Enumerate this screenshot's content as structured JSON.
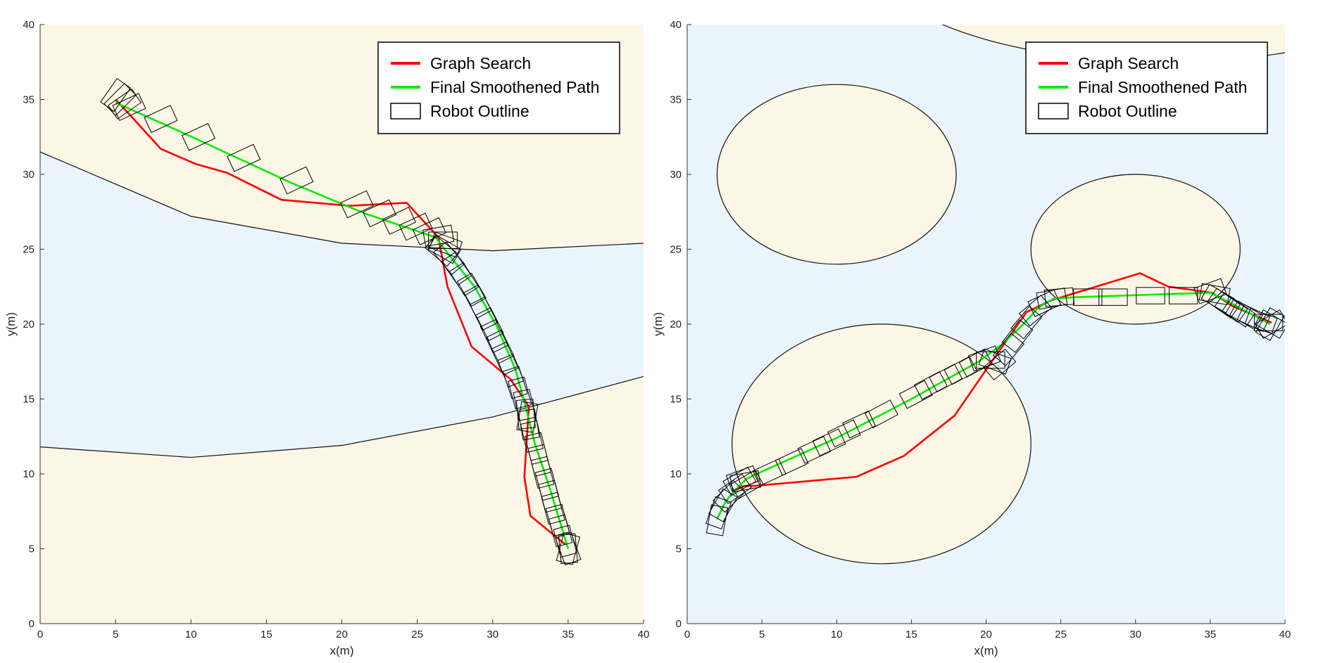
{
  "colors": {
    "background": "#ffffff",
    "sand": "#fcf6e6",
    "water": "#eaf5fb",
    "graph_search": "#ff0000",
    "smoothed": "#00ee00",
    "outline": "#000000"
  },
  "chart_data": [
    {
      "type": "line",
      "xlabel": "x(m)",
      "ylabel": "y(m)",
      "xlim": [
        0,
        40
      ],
      "ylim": [
        0,
        40
      ],
      "xticks": [
        "0",
        "5",
        "10",
        "15",
        "20",
        "25",
        "30",
        "35",
        "40"
      ],
      "yticks": [
        "0",
        "5",
        "10",
        "15",
        "20",
        "25",
        "30",
        "35",
        "40"
      ],
      "grid": false,
      "legend_position": "top-right",
      "legend": [
        "Graph Search",
        "Final Smoothened Path",
        "Robot Outline"
      ],
      "background_region": "sand",
      "regions": [
        {
          "kind": "band",
          "fill": "water",
          "upper_arc": [
            [
              0,
              31.5
            ],
            [
              10,
              27.2
            ],
            [
              20,
              25.4
            ],
            [
              30,
              24.9
            ],
            [
              40,
              25.4
            ]
          ],
          "lower_arc": [
            [
              0,
              11.8
            ],
            [
              10,
              11.1
            ],
            [
              20,
              11.9
            ],
            [
              30,
              13.8
            ],
            [
              40,
              16.5
            ]
          ]
        }
      ],
      "series": [
        {
          "name": "Graph Search",
          "color_key": "graph_search",
          "x": [
            5,
            6.2,
            8,
            10.3,
            12.4,
            16,
            20.5,
            24.3,
            26.4,
            27,
            28.6,
            31.2,
            32.4,
            32.1,
            32.5,
            34.8
          ],
          "y": [
            35,
            33.7,
            31.7,
            30.7,
            30.1,
            28.3,
            27.9,
            28.1,
            25.8,
            22.5,
            18.5,
            16.3,
            14.5,
            9.8,
            7.2,
            5.3
          ]
        },
        {
          "name": "Final Smoothened Path",
          "color_key": "smoothed",
          "x": [
            5,
            10.5,
            16.5,
            21.5,
            26.2,
            27.2,
            28.8,
            30.3,
            31.5,
            32.1,
            32.8,
            33.8,
            34.7,
            35
          ],
          "y": [
            34.8,
            32.3,
            29.5,
            27.4,
            25.8,
            24.5,
            22.5,
            19.8,
            17,
            14.8,
            12,
            9,
            6,
            5
          ]
        },
        {
          "name": "Robot Outline",
          "color_key": "outline",
          "poses": [
            [
              5,
              35.3,
              55
            ],
            [
              5.3,
              35,
              45
            ],
            [
              5.6,
              34.7,
              35
            ],
            [
              5.9,
              34.5,
              25
            ],
            [
              8,
              33.7,
              25
            ],
            [
              10.5,
              32.5,
              25
            ],
            [
              13.5,
              31.1,
              25
            ],
            [
              17,
              29.6,
              25
            ],
            [
              21,
              28,
              25
            ],
            [
              22.5,
              27.4,
              25
            ],
            [
              23.8,
              26.9,
              25
            ],
            [
              24.9,
              26.5,
              25
            ],
            [
              25.8,
              26.2,
              25
            ],
            [
              26.4,
              25.9,
              10
            ],
            [
              26.7,
              25.6,
              0
            ],
            [
              26.9,
              25.3,
              -20
            ],
            [
              26.8,
              25,
              -30
            ],
            [
              26.6,
              24.9,
              -40
            ],
            [
              27.1,
              24.4,
              -50
            ],
            [
              27.6,
              23.7,
              -55
            ],
            [
              28.1,
              23,
              -58
            ],
            [
              28.6,
              22.3,
              -60
            ],
            [
              29,
              21.5,
              -62
            ],
            [
              29.4,
              20.7,
              -63
            ],
            [
              29.8,
              20,
              -63
            ],
            [
              30.1,
              19.2,
              -64
            ],
            [
              30.5,
              18.5,
              -64
            ],
            [
              30.8,
              17.7,
              -65
            ],
            [
              31.2,
              16.9,
              -68
            ],
            [
              31.5,
              16.1,
              -72
            ],
            [
              31.8,
              15.4,
              -75
            ],
            [
              32.1,
              14.6,
              -78
            ],
            [
              32.2,
              14,
              -85
            ],
            [
              32.3,
              13.8,
              -100
            ],
            [
              32.4,
              13.3,
              -80
            ],
            [
              32.6,
              12.5,
              -77
            ],
            [
              32.9,
              11.7,
              -76
            ],
            [
              33.1,
              10.9,
              -76
            ],
            [
              33.3,
              10.1,
              -76
            ],
            [
              33.6,
              9.3,
              -75
            ],
            [
              33.8,
              8.5,
              -75
            ],
            [
              34,
              7.7,
              -75
            ],
            [
              34.3,
              6.9,
              -75
            ],
            [
              34.5,
              6.2,
              -75
            ],
            [
              34.8,
              5.5,
              -75
            ],
            [
              35,
              5,
              -85
            ],
            [
              35,
              5,
              -105
            ],
            [
              35,
              5,
              -70
            ]
          ]
        }
      ]
    },
    {
      "type": "line",
      "xlabel": "x(m)",
      "ylabel": "y(m)",
      "xlim": [
        0,
        40
      ],
      "ylim": [
        0,
        40
      ],
      "xticks": [
        "0",
        "5",
        "10",
        "15",
        "20",
        "25",
        "30",
        "35",
        "40"
      ],
      "yticks": [
        "0",
        "5",
        "10",
        "15",
        "20",
        "25",
        "30",
        "35",
        "40"
      ],
      "grid": false,
      "legend_position": "top-right",
      "legend": [
        "Graph Search",
        "Final Smoothened Path",
        "Robot Outline"
      ],
      "background_region": "water",
      "regions": [
        {
          "kind": "ellipse",
          "fill": "sand",
          "center": [
            10,
            30
          ],
          "radii": [
            8,
            6
          ]
        },
        {
          "kind": "ellipse",
          "fill": "sand",
          "center": [
            30,
            25
          ],
          "radii": [
            7,
            5
          ]
        },
        {
          "kind": "ellipse",
          "fill": "sand",
          "center": [
            13,
            12
          ],
          "radii": [
            10,
            8
          ]
        },
        {
          "kind": "ellipse",
          "fill": "sand",
          "center": [
            32,
            45
          ],
          "radii": [
            20,
            7.5
          ]
        }
      ],
      "series": [
        {
          "name": "Graph Search",
          "color_key": "graph_search",
          "x": [
            2,
            2.6,
            3.2,
            3.8,
            4.5,
            11.3,
            14.5,
            17.9,
            20.1,
            22.7,
            24.4,
            26.7,
            30.3,
            32.2,
            35.1,
            36.5,
            39.1
          ],
          "y": [
            7,
            8.2,
            8.9,
            9.2,
            9.2,
            9.8,
            11.2,
            13.9,
            17.1,
            20.8,
            21.6,
            22.3,
            23.4,
            22.5,
            22.1,
            21.2,
            20.1
          ]
        },
        {
          "name": "Final Smoothened Path",
          "color_key": "smoothed",
          "x": [
            2,
            2.6,
            3.3,
            4,
            6,
            10,
            15,
            19.5,
            21,
            22.3,
            23.5,
            24.5,
            26,
            35,
            36,
            37.5,
            39
          ],
          "y": [
            7,
            8.2,
            9,
            9.7,
            10.6,
            12.4,
            15,
            17.5,
            18.6,
            19.8,
            21.1,
            21.7,
            21.8,
            22.1,
            21.6,
            20.8,
            20
          ]
        },
        {
          "name": "Robot Outline",
          "color_key": "outline",
          "poses": [
            [
              2,
              6.9,
              80
            ],
            [
              2.1,
              7.4,
              70
            ],
            [
              2.4,
              7.9,
              60
            ],
            [
              2.8,
              8.5,
              45
            ],
            [
              3.2,
              9,
              35
            ],
            [
              3.5,
              9.5,
              30
            ],
            [
              3.7,
              9.7,
              20
            ],
            [
              3.9,
              9.5,
              10
            ],
            [
              4,
              9.3,
              30
            ],
            [
              5.5,
              10.1,
              25
            ],
            [
              7,
              10.8,
              25
            ],
            [
              8.5,
              11.6,
              25
            ],
            [
              9.5,
              12.1,
              25
            ],
            [
              10.5,
              12.7,
              25
            ],
            [
              11.5,
              13.3,
              25
            ],
            [
              13,
              14,
              28
            ],
            [
              15.3,
              15.3,
              28
            ],
            [
              16.3,
              15.9,
              28
            ],
            [
              17.3,
              16.4,
              28
            ],
            [
              18.3,
              16.9,
              28
            ],
            [
              19.3,
              17.4,
              28
            ],
            [
              19.9,
              17.7,
              20
            ],
            [
              20.3,
              17.6,
              0
            ],
            [
              20.6,
              17.5,
              -20
            ],
            [
              20.9,
              17.3,
              40
            ],
            [
              21.5,
              18.3,
              50
            ],
            [
              22.1,
              19.2,
              52
            ],
            [
              22.7,
              20.1,
              50
            ],
            [
              23.3,
              20.9,
              40
            ],
            [
              23.9,
              21.4,
              25
            ],
            [
              24.4,
              21.7,
              10
            ],
            [
              24.9,
              21.8,
              5
            ],
            [
              26.8,
              21.8,
              0
            ],
            [
              28.5,
              21.8,
              0
            ],
            [
              31,
              21.9,
              0
            ],
            [
              33.2,
              21.9,
              0
            ],
            [
              35,
              22.2,
              20
            ],
            [
              35.3,
              22,
              -10
            ],
            [
              35.5,
              21.7,
              -30
            ],
            [
              35.9,
              21.4,
              -35
            ],
            [
              36.4,
              21.1,
              -35
            ],
            [
              36.9,
              20.8,
              -35
            ],
            [
              37.4,
              20.6,
              -30
            ],
            [
              37.9,
              20.4,
              -25
            ],
            [
              38.4,
              20.2,
              -20
            ],
            [
              38.9,
              20.1,
              0
            ],
            [
              39.1,
              20,
              30
            ],
            [
              39.1,
              20,
              -30
            ],
            [
              39,
              20,
              60
            ]
          ]
        }
      ]
    }
  ]
}
